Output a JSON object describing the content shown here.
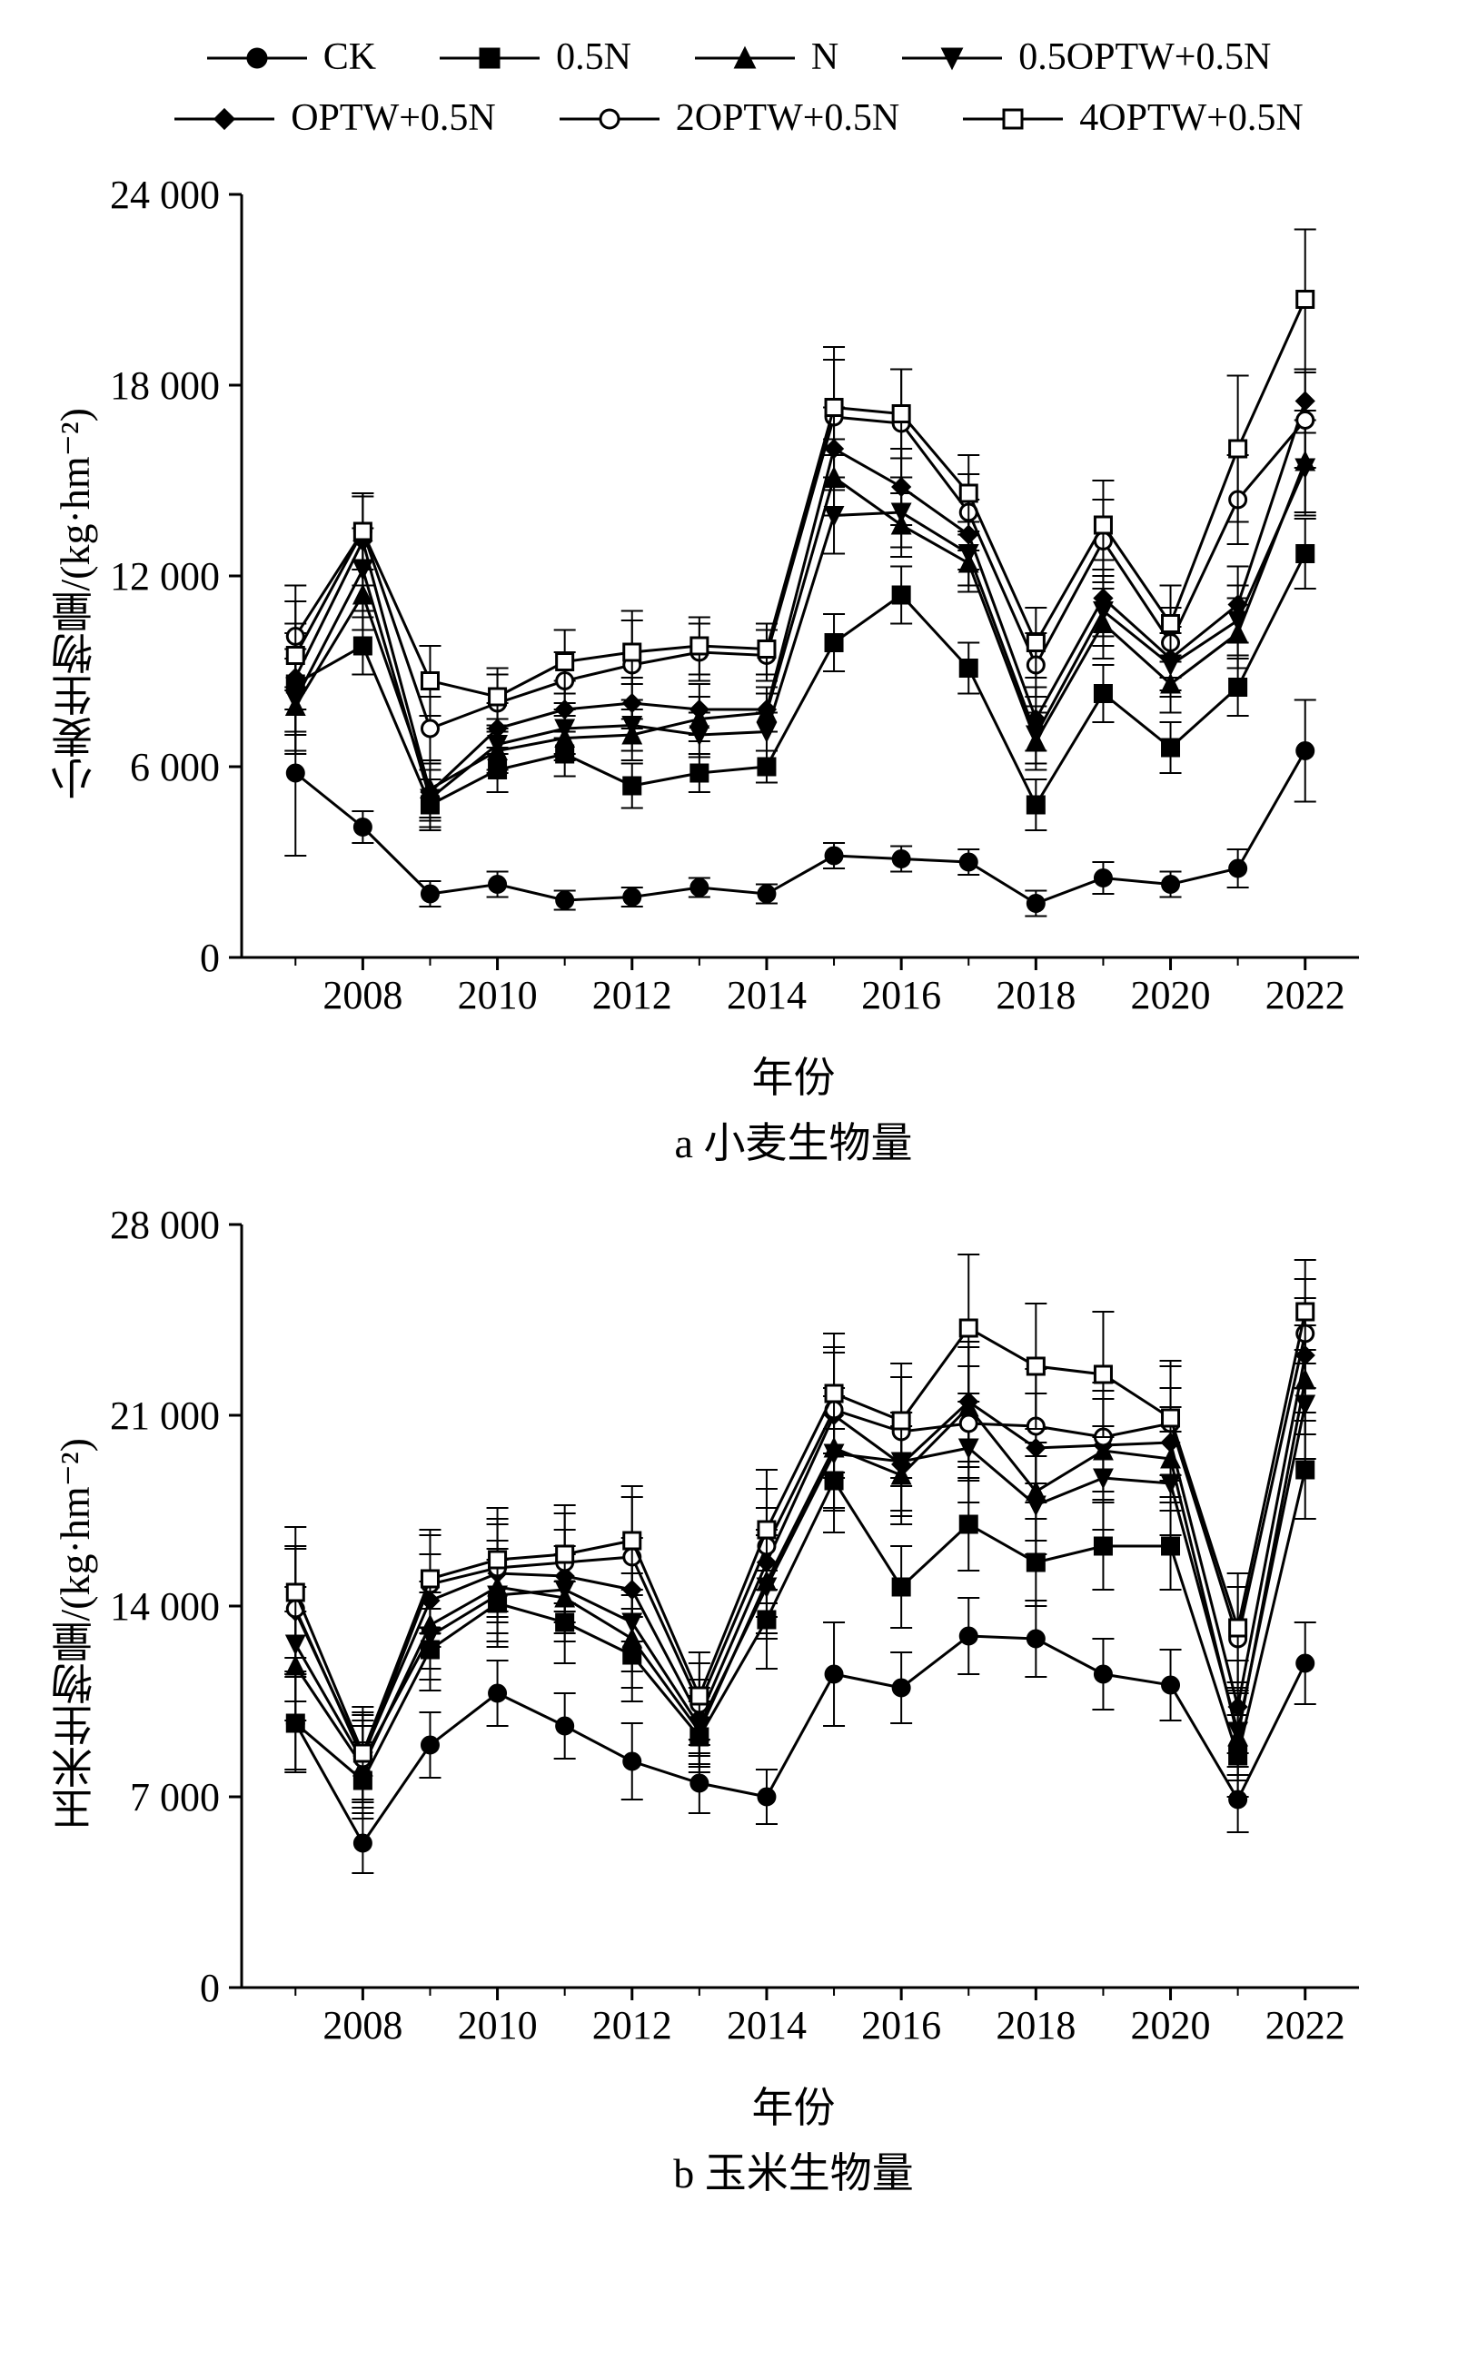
{
  "legend": {
    "items": [
      {
        "label": "CK",
        "marker": "circle",
        "fill": "#000000"
      },
      {
        "label": "0.5N",
        "marker": "square",
        "fill": "#000000"
      },
      {
        "label": "N",
        "marker": "triangle-up",
        "fill": "#000000"
      },
      {
        "label": "0.5OPTW+0.5N",
        "marker": "triangle-down",
        "fill": "#000000"
      },
      {
        "label": "OPTW+0.5N",
        "marker": "diamond",
        "fill": "#000000"
      },
      {
        "label": "2OPTW+0.5N",
        "marker": "circle",
        "fill": "#ffffff"
      },
      {
        "label": "4OPTW+0.5N",
        "marker": "square",
        "fill": "#ffffff"
      }
    ],
    "line_color": "#000000",
    "line_width": 3,
    "marker_stroke": "#000000",
    "marker_size": 20,
    "fontsize": 42
  },
  "charts": {
    "a": {
      "type": "line-errorbar",
      "title": "a 小麦生物量",
      "ylabel": "小麦生物量/(kg·hm⁻²)",
      "xlabel": "年份",
      "background_color": "#ffffff",
      "axis_color": "#000000",
      "tick_font_size": 44,
      "label_font_size": 46,
      "line_width": 3,
      "marker_size": 18,
      "errorbar_width": 2,
      "cap_width": 12,
      "x": [
        2007,
        2008,
        2009,
        2010,
        2011,
        2012,
        2013,
        2014,
        2015,
        2016,
        2017,
        2018,
        2019,
        2020,
        2021,
        2022
      ],
      "xlim": [
        2006.2,
        2022.8
      ],
      "xticks": [
        2008,
        2010,
        2012,
        2014,
        2016,
        2018,
        2020,
        2022
      ],
      "ylim": [
        0,
        24000
      ],
      "yticks": [
        0,
        6000,
        12000,
        18000,
        24000
      ],
      "ytick_labels": [
        "0",
        "6 000",
        "12 000",
        "18 000",
        "24 000"
      ],
      "series": [
        {
          "key": "CK",
          "marker": "circle",
          "fill": "#000000",
          "y": [
            5800,
            4100,
            2000,
            2300,
            1800,
            1900,
            2200,
            2000,
            3200,
            3100,
            3000,
            1700,
            2500,
            2300,
            2800,
            6500
          ],
          "err": [
            2600,
            500,
            400,
            400,
            300,
            300,
            300,
            300,
            400,
            400,
            400,
            400,
            500,
            400,
            600,
            1600
          ]
        },
        {
          "key": "0.5N",
          "marker": "square",
          "fill": "#000000",
          "y": [
            8600,
            9800,
            4800,
            5900,
            6400,
            5400,
            5800,
            6000,
            9900,
            11400,
            9100,
            4800,
            8300,
            6600,
            8500,
            12700
          ],
          "err": [
            1600,
            900,
            800,
            700,
            700,
            700,
            600,
            500,
            900,
            900,
            800,
            800,
            900,
            800,
            900,
            1100
          ]
        },
        {
          "key": "N",
          "marker": "triangle-up",
          "fill": "#000000",
          "y": [
            7900,
            11400,
            5300,
            6500,
            6900,
            7000,
            7500,
            7700,
            15100,
            13600,
            12400,
            6800,
            10500,
            8600,
            10200,
            15600
          ],
          "err": [
            1500,
            1100,
            900,
            700,
            700,
            800,
            700,
            600,
            1200,
            1000,
            900,
            900,
            1100,
            900,
            1100,
            1600
          ]
        },
        {
          "key": "0.5OPTW+0.5N",
          "marker": "triangle-down",
          "fill": "#000000",
          "y": [
            8100,
            12200,
            5000,
            6700,
            7200,
            7300,
            7000,
            7100,
            13900,
            14000,
            12700,
            7000,
            10900,
            9200,
            10600,
            15400
          ],
          "err": [
            1600,
            1300,
            900,
            800,
            800,
            800,
            700,
            600,
            1200,
            1100,
            1000,
            900,
            1100,
            1000,
            1100,
            1500
          ]
        },
        {
          "key": "OPTW+0.5N",
          "marker": "diamond",
          "fill": "#000000",
          "y": [
            8800,
            13100,
            5200,
            7200,
            7800,
            8000,
            7800,
            7800,
            16000,
            14800,
            13300,
            7500,
            11300,
            9400,
            11100,
            17500
          ],
          "err": [
            1700,
            1400,
            900,
            800,
            900,
            800,
            800,
            700,
            1300,
            1200,
            1100,
            1000,
            1200,
            1000,
            1200,
            1000
          ]
        },
        {
          "key": "2OPTW+0.5N",
          "marker": "circle",
          "fill": "#ffffff",
          "y": [
            10100,
            13400,
            7200,
            8000,
            8700,
            9200,
            9600,
            9500,
            17000,
            16800,
            14000,
            9200,
            13100,
            9900,
            14400,
            16900
          ],
          "err": [
            1600,
            1200,
            1000,
            900,
            900,
            1700,
            900,
            800,
            2200,
            1700,
            1200,
            1000,
            1300,
            1100,
            1400,
            1500
          ]
        },
        {
          "key": "4OPTW+0.5N",
          "marker": "square",
          "fill": "#ffffff",
          "y": [
            9500,
            13400,
            8700,
            8200,
            9300,
            9600,
            9800,
            9700,
            17300,
            17100,
            14600,
            9900,
            13600,
            10500,
            16000,
            20700
          ],
          "err": [
            1700,
            1200,
            1100,
            900,
            1000,
            1000,
            900,
            800,
            1500,
            1400,
            1200,
            1100,
            1400,
            1200,
            2300,
            2200
          ]
        }
      ]
    },
    "b": {
      "type": "line-errorbar",
      "title": "b 玉米生物量",
      "ylabel": "玉米生物量/(kg·hm⁻²)",
      "xlabel": "年份",
      "background_color": "#ffffff",
      "axis_color": "#000000",
      "tick_font_size": 44,
      "label_font_size": 46,
      "line_width": 3,
      "marker_size": 18,
      "errorbar_width": 2,
      "cap_width": 12,
      "x": [
        2007,
        2008,
        2009,
        2010,
        2011,
        2012,
        2013,
        2014,
        2015,
        2016,
        2017,
        2018,
        2019,
        2020,
        2021,
        2022
      ],
      "xlim": [
        2006.2,
        2022.8
      ],
      "xticks": [
        2008,
        2010,
        2012,
        2014,
        2016,
        2018,
        2020,
        2022
      ],
      "ylim": [
        0,
        28000
      ],
      "yticks": [
        0,
        7000,
        14000,
        21000,
        28000
      ],
      "ytick_labels": [
        "0",
        "7 000",
        "14 000",
        "21 000",
        "28 000"
      ],
      "series": [
        {
          "key": "CK",
          "marker": "circle",
          "fill": "#000000",
          "y": [
            9700,
            5300,
            8900,
            10800,
            9600,
            8300,
            7500,
            7000,
            11500,
            11000,
            12900,
            12800,
            11500,
            11100,
            6900,
            11900
          ],
          "err": [
            1700,
            1100,
            1200,
            1200,
            1200,
            1400,
            1100,
            1000,
            1900,
            1300,
            1400,
            1400,
            1300,
            1300,
            1200,
            1500
          ]
        },
        {
          "key": "0.5N",
          "marker": "square",
          "fill": "#000000",
          "y": [
            9700,
            7600,
            12400,
            14100,
            13400,
            12200,
            9200,
            13500,
            18600,
            14700,
            17000,
            15600,
            16200,
            16200,
            8500,
            19000
          ],
          "err": [
            1800,
            1400,
            1500,
            1600,
            1500,
            1700,
            1300,
            1800,
            1900,
            1500,
            1700,
            1600,
            1600,
            1600,
            1500,
            1800
          ]
        },
        {
          "key": "N",
          "marker": "triangle-up",
          "fill": "#000000",
          "y": [
            11800,
            8100,
            13300,
            14700,
            14300,
            12800,
            9400,
            14900,
            19800,
            18800,
            21300,
            18200,
            19700,
            19400,
            9200,
            22300
          ],
          "err": [
            2000,
            1500,
            1600,
            1700,
            1600,
            1800,
            1300,
            1900,
            2200,
            1800,
            2200,
            1800,
            1900,
            1900,
            1600,
            2000
          ]
        },
        {
          "key": "0.5OPTW+0.5N",
          "marker": "triangle-down",
          "fill": "#000000",
          "y": [
            12600,
            8300,
            12900,
            14400,
            14600,
            13400,
            9600,
            14700,
            19600,
            19300,
            19800,
            17700,
            18700,
            18500,
            9400,
            21400
          ],
          "err": [
            2100,
            1500,
            1600,
            1700,
            1600,
            1800,
            1400,
            1900,
            2100,
            1800,
            2000,
            1800,
            1900,
            1900,
            1600,
            2000
          ]
        },
        {
          "key": "OPTW+0.5N",
          "marker": "diamond",
          "fill": "#000000",
          "y": [
            13800,
            8500,
            14200,
            15200,
            15100,
            14600,
            9900,
            15600,
            21000,
            19200,
            21500,
            19800,
            19900,
            20000,
            10300,
            23200
          ],
          "err": [
            2300,
            1600,
            1700,
            1800,
            1700,
            1900,
            1400,
            2000,
            2300,
            1900,
            2200,
            2000,
            2000,
            2000,
            1700,
            2100
          ]
        },
        {
          "key": "2OPTW+0.5N",
          "marker": "circle",
          "fill": "#ffffff",
          "y": [
            13900,
            8400,
            14800,
            15400,
            15600,
            15800,
            10400,
            16200,
            21200,
            20400,
            20700,
            20600,
            20200,
            20700,
            12800,
            24000
          ],
          "err": [
            2300,
            1600,
            1800,
            1800,
            1800,
            2200,
            1500,
            2100,
            2300,
            2000,
            2100,
            2100,
            2000,
            2100,
            1900,
            2000
          ]
        },
        {
          "key": "4OPTW+0.5N",
          "marker": "square",
          "fill": "#ffffff",
          "y": [
            14500,
            8600,
            15000,
            15700,
            15900,
            16400,
            10700,
            16800,
            21800,
            20800,
            24200,
            22800,
            22500,
            20900,
            13200,
            24800
          ],
          "err": [
            2400,
            1700,
            1800,
            1900,
            1800,
            2000,
            1600,
            2200,
            2200,
            2100,
            2700,
            2300,
            2300,
            2100,
            2000,
            1900
          ]
        }
      ]
    }
  }
}
